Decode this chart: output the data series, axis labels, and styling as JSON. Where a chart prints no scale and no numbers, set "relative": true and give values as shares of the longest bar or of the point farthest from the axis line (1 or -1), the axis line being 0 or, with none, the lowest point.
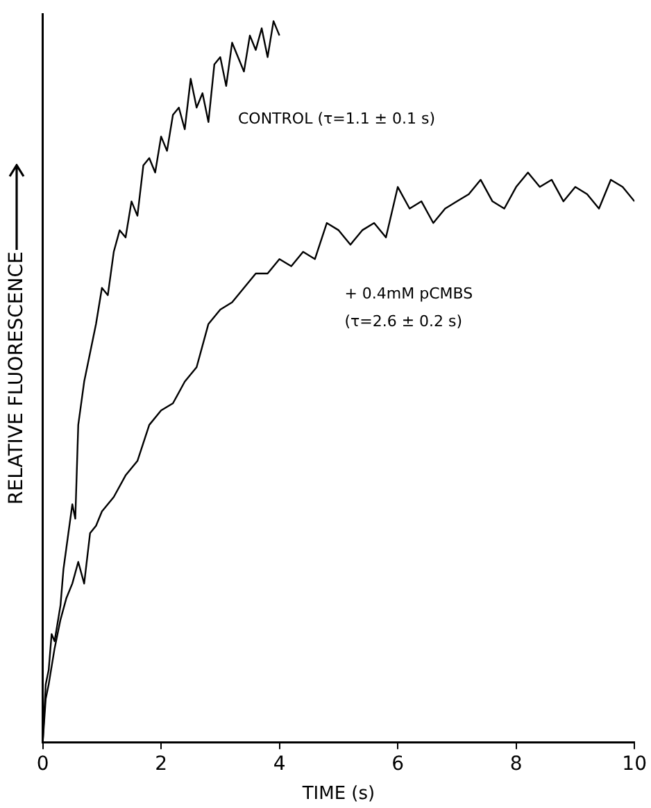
{
  "chart_data": {
    "type": "line",
    "relative": true,
    "xlabel": "TIME (s)",
    "ylabel": "RELATIVE FLUORESCENCE",
    "xlim": [
      0,
      10
    ],
    "xticks": [
      0,
      2,
      4,
      6,
      8,
      10
    ],
    "grid": false,
    "legend": false,
    "marker": "none",
    "line_style": "solid",
    "series": [
      {
        "name": "CONTROL (τ=1.1 ± 0.1 s)",
        "color": "#000000",
        "x": [
          0,
          0.05,
          0.1,
          0.15,
          0.2,
          0.3,
          0.35,
          0.4,
          0.5,
          0.55,
          0.6,
          0.7,
          0.8,
          0.9,
          1.0,
          1.1,
          1.2,
          1.3,
          1.4,
          1.5,
          1.6,
          1.7,
          1.8,
          1.9,
          2.0,
          2.1,
          2.2,
          2.3,
          2.4,
          2.5,
          2.6,
          2.7,
          2.8,
          2.9,
          3.0,
          3.1,
          3.2,
          3.3,
          3.4,
          3.5,
          3.6,
          3.7,
          3.8,
          3.9,
          4.0
        ],
        "values": [
          0,
          0.08,
          0.1,
          0.15,
          0.14,
          0.19,
          0.24,
          0.27,
          0.33,
          0.31,
          0.44,
          0.5,
          0.54,
          0.58,
          0.63,
          0.62,
          0.68,
          0.71,
          0.7,
          0.75,
          0.73,
          0.8,
          0.81,
          0.79,
          0.84,
          0.82,
          0.87,
          0.88,
          0.85,
          0.92,
          0.88,
          0.9,
          0.86,
          0.94,
          0.95,
          0.91,
          0.97,
          0.95,
          0.93,
          0.98,
          0.96,
          0.99,
          0.95,
          1.0,
          0.98
        ]
      },
      {
        "name": "+ 0.4mM pCMBS (τ=2.6 ± 0.2 s)",
        "color": "#000000",
        "x": [
          0,
          0.05,
          0.1,
          0.2,
          0.3,
          0.4,
          0.5,
          0.6,
          0.7,
          0.8,
          0.9,
          1.0,
          1.2,
          1.4,
          1.6,
          1.8,
          2.0,
          2.2,
          2.4,
          2.6,
          2.8,
          3.0,
          3.2,
          3.4,
          3.6,
          3.8,
          4.0,
          4.2,
          4.4,
          4.6,
          4.8,
          5.0,
          5.2,
          5.4,
          5.6,
          5.8,
          6.0,
          6.2,
          6.4,
          6.6,
          6.8,
          7.0,
          7.2,
          7.4,
          7.6,
          7.8,
          8.0,
          8.2,
          8.4,
          8.6,
          8.8,
          9.0,
          9.2,
          9.4,
          9.6,
          9.8,
          10.0
        ],
        "values": [
          0,
          0.06,
          0.08,
          0.13,
          0.17,
          0.2,
          0.22,
          0.25,
          0.22,
          0.29,
          0.3,
          0.32,
          0.34,
          0.37,
          0.39,
          0.44,
          0.46,
          0.47,
          0.5,
          0.52,
          0.58,
          0.6,
          0.61,
          0.63,
          0.65,
          0.65,
          0.67,
          0.66,
          0.68,
          0.67,
          0.72,
          0.71,
          0.69,
          0.71,
          0.72,
          0.7,
          0.77,
          0.74,
          0.75,
          0.72,
          0.74,
          0.75,
          0.76,
          0.78,
          0.75,
          0.74,
          0.77,
          0.79,
          0.77,
          0.78,
          0.75,
          0.77,
          0.76,
          0.74,
          0.78,
          0.77,
          0.75
        ]
      }
    ]
  }
}
